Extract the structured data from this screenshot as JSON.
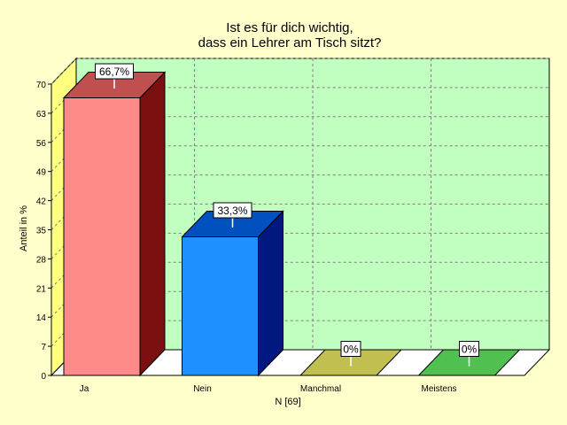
{
  "chart_data": {
    "type": "bar",
    "title_lines": [
      "Ist es für dich wichtig,",
      "dass ein Lehrer am Tisch sitzt?"
    ],
    "categories": [
      "Ja",
      "Nein",
      "Manchmal",
      "Meistens"
    ],
    "values": [
      66.7,
      33.3,
      0,
      0
    ],
    "value_labels": [
      "66,7%",
      "33,3%",
      "0%",
      "0%"
    ],
    "ylabel": "Anteil in %",
    "xlabel": "N [69]",
    "ylim": [
      0,
      70
    ],
    "yticks": [
      "0",
      "7",
      "14",
      "21",
      "28",
      "35",
      "42",
      "49",
      "56",
      "63",
      "70"
    ],
    "grid": true,
    "three_d": true,
    "colors": {
      "page_background": "#ffffcc",
      "plot_background": "#c0ffc0",
      "left_wall": "#ffff80",
      "floor": "#ffffff",
      "grid": "#808080",
      "bars": [
        {
          "front": "#ff8a8a",
          "top": "#c05050",
          "side": "#7a1010"
        },
        {
          "front": "#1e90ff",
          "top": "#0050c0",
          "side": "#001880"
        },
        {
          "front": "#c0c050",
          "top": "#c0c050",
          "side": "#c0c050"
        },
        {
          "front": "#50c050",
          "top": "#50c050",
          "side": "#50c050"
        }
      ]
    }
  }
}
